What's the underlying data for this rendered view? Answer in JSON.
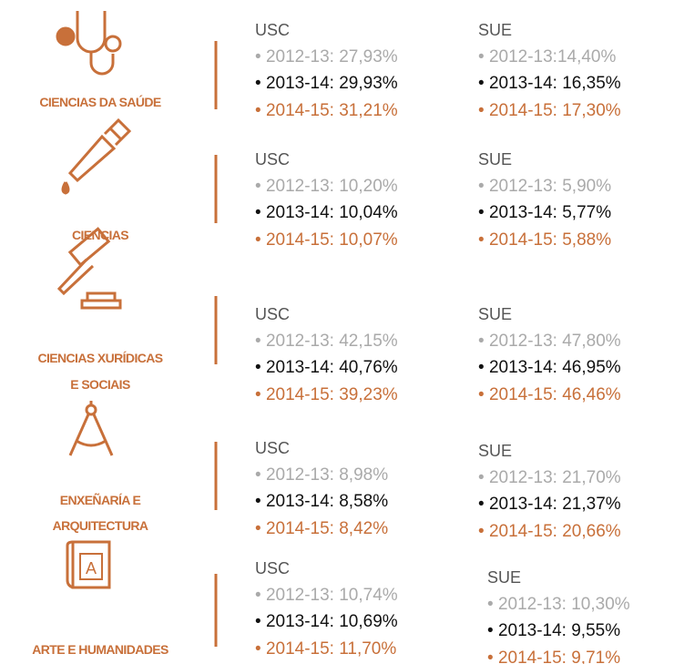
{
  "sections": [
    {
      "label": [
        "CIENCIAS DA SAÚDE"
      ],
      "columns": [
        {
          "name": "USC",
          "lines": [
            "2012-13: 27,93%",
            "2013-14: 29,93%",
            "2014-15: 31,21%"
          ]
        },
        {
          "name": "SUE",
          "lines": [
            "2012-13:14,40%",
            "2013-14: 16,35%",
            "2014-15: 17,30%"
          ]
        }
      ]
    },
    {
      "label": [
        "CIENCIAS"
      ],
      "columns": [
        {
          "name": "USC",
          "lines": [
            "2012-13: 10,20%",
            "2013-14: 10,04%",
            "2014-15: 10,07%"
          ]
        },
        {
          "name": "SUE",
          "lines": [
            "2012-13: 5,90%",
            "2013-14: 5,77%",
            "2014-15: 5,88%"
          ]
        }
      ]
    },
    {
      "label": [
        "CIENCIAS XURÍDICAS",
        "E SOCIAIS"
      ],
      "columns": [
        {
          "name": "USC",
          "lines": [
            "2012-13: 42,15%",
            "2013-14: 40,76%",
            "2014-15: 39,23%"
          ]
        },
        {
          "name": "SUE",
          "lines": [
            "2012-13: 47,80%",
            "2013-14: 46,95%",
            "2014-15: 46,46%"
          ]
        }
      ]
    },
    {
      "label": [
        "ENXEÑARÍA E",
        "ARQUITECTURA"
      ],
      "columns": [
        {
          "name": "USC",
          "lines": [
            "2012-13: 8,98%",
            "2013-14: 8,58%",
            "2014-15: 8,42%"
          ]
        },
        {
          "name": "SUE",
          "lines": [
            "2012-13: 21,70%",
            "2013-14: 21,37%",
            "2014-15: 20,66%"
          ]
        }
      ]
    },
    {
      "label": [
        "ARTE E HUMANIDADES"
      ],
      "columns": [
        {
          "name": "USC",
          "lines": [
            "2012-13: 10,74%",
            "2013-14: 10,69%",
            "2014-15: 11,70%"
          ]
        },
        {
          "name": "SUE",
          "lines": [
            "2012-13: 10,30%",
            "2013-14: 9,55%",
            "2014-15: 9,71%"
          ]
        }
      ]
    }
  ]
}
